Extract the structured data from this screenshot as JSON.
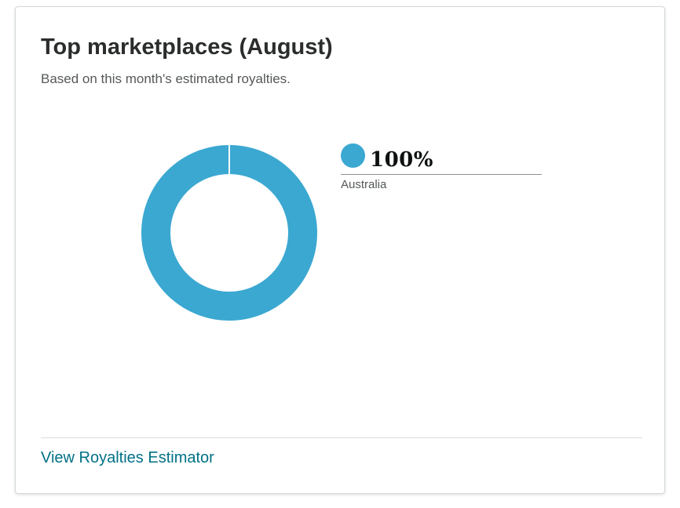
{
  "card": {
    "title": "Top marketplaces (August)",
    "subtitle": "Based on this month's estimated royalties.",
    "footer_link": "View Royalties Estimator"
  },
  "colors": {
    "series": "#3ba8d1",
    "link": "#007185"
  },
  "chart_data": {
    "type": "pie",
    "variant": "donut",
    "title": "Top marketplaces (August)",
    "subtitle": "Based on this month's estimated royalties.",
    "unit": "%",
    "legend_position": "right",
    "slices": [
      {
        "label": "Australia",
        "value": 100,
        "display": "100%",
        "color": "#3ba8d1"
      }
    ]
  }
}
